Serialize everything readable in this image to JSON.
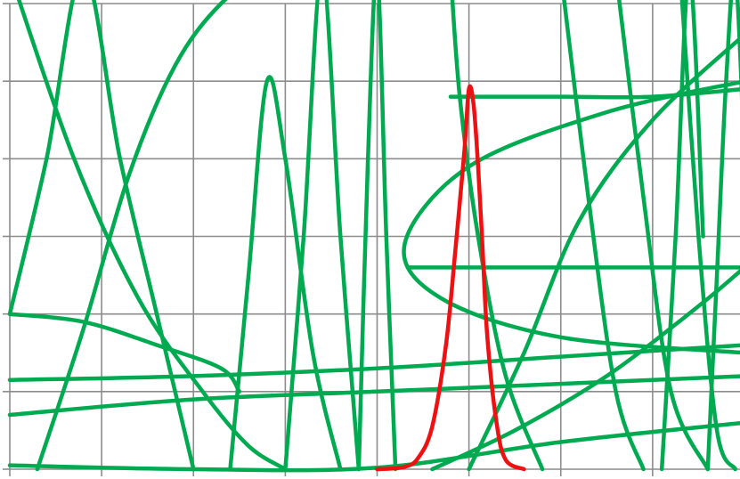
{
  "chart_data": {
    "type": "line",
    "title": "",
    "xlabel": "",
    "ylabel": "",
    "xlim": [
      0,
      8
    ],
    "ylim": [
      0,
      6
    ],
    "grid": true,
    "legend": "none",
    "colors": {
      "highlight": "#ee1111",
      "others": "#00aa50",
      "grid": "#8c8c8c"
    },
    "series": [
      {
        "color": "#ee1111",
        "x": [
          4.0,
          4.3,
          4.45,
          4.6,
          4.75,
          4.85,
          4.95,
          5.0,
          5.05,
          5.1,
          5.15,
          5.2,
          5.3,
          5.4,
          5.6
        ],
        "y": [
          0.0,
          0.03,
          0.15,
          0.55,
          1.6,
          2.8,
          4.1,
          4.9,
          4.7,
          3.9,
          2.8,
          1.7,
          0.6,
          0.12,
          0.0
        ]
      },
      {
        "color": "#00aa50",
        "x": [
          0.0,
          0.4,
          0.8,
          1.2,
          1.6,
          2.0
        ],
        "y": [
          2.0,
          4.0,
          6.4,
          4.0,
          2.0,
          0.0
        ]
      },
      {
        "color": "#00aa50",
        "x": [
          0.0,
          0.7,
          1.4,
          2.1,
          2.6,
          3.0
        ],
        "y": [
          6.4,
          4.0,
          2.2,
          1.0,
          0.3,
          0.0
        ]
      },
      {
        "color": "#00aa50",
        "x": [
          0.3,
          0.8,
          1.3,
          1.8,
          2.3,
          2.8
        ],
        "y": [
          0.0,
          1.8,
          3.8,
          5.2,
          6.0,
          6.4
        ]
      },
      {
        "color": "#00aa50",
        "x": [
          0.0,
          0.8,
          1.6,
          2.3,
          2.5
        ],
        "y": [
          2.0,
          1.9,
          1.6,
          1.3,
          1.0
        ]
      },
      {
        "color": "#00aa50",
        "x": [
          0.0,
          2.0,
          4.0,
          6.0,
          8.0
        ],
        "y": [
          1.15,
          1.2,
          1.3,
          1.45,
          1.6
        ]
      },
      {
        "color": "#00aa50",
        "x": [
          0.0,
          2.0,
          4.0,
          6.0,
          8.0
        ],
        "y": [
          0.7,
          0.9,
          1.0,
          1.1,
          1.2
        ]
      },
      {
        "color": "#00aa50",
        "x": [
          2.4,
          2.6,
          2.8,
          3.0,
          3.3,
          3.6
        ],
        "y": [
          0.0,
          2.5,
          5.0,
          4.0,
          1.5,
          0.0
        ]
      },
      {
        "color": "#00aa50",
        "x": [
          3.0,
          3.2,
          3.4,
          3.6,
          3.8
        ],
        "y": [
          0.0,
          3.0,
          6.4,
          3.0,
          0.0
        ]
      },
      {
        "color": "#00aa50",
        "x": [
          3.8,
          3.9,
          4.0,
          4.1,
          4.2
        ],
        "y": [
          0.0,
          4.0,
          6.4,
          3.0,
          0.0
        ]
      },
      {
        "color": "#00aa50",
        "x": [
          8.0,
          6.5,
          5.0,
          4.3,
          4.7,
          6.0,
          8.0
        ],
        "y": [
          5.0,
          4.6,
          3.9,
          2.9,
          2.2,
          1.7,
          1.5
        ]
      },
      {
        "color": "#00aa50",
        "x": [
          4.35,
          5.5,
          6.5,
          8.0
        ],
        "y": [
          2.6,
          2.6,
          2.6,
          2.6
        ]
      },
      {
        "color": "#00aa50",
        "x": [
          4.8,
          6.0,
          7.0,
          8.0
        ],
        "y": [
          4.8,
          4.8,
          4.8,
          4.9
        ]
      },
      {
        "color": "#00aa50",
        "x": [
          4.8,
          4.9,
          5.1,
          5.4,
          5.8
        ],
        "y": [
          6.4,
          4.8,
          3.0,
          1.2,
          0.0
        ]
      },
      {
        "color": "#00aa50",
        "x": [
          5.0,
          5.6,
          6.2,
          7.0,
          8.0
        ],
        "y": [
          0.0,
          1.5,
          3.2,
          4.5,
          5.6
        ]
      },
      {
        "color": "#00aa50",
        "x": [
          4.6,
          5.5,
          6.5,
          7.5,
          8.0
        ],
        "y": [
          0.0,
          0.5,
          1.2,
          2.1,
          2.6
        ]
      },
      {
        "color": "#00aa50",
        "x": [
          0.0,
          2.0,
          4.0,
          6.0,
          8.0
        ],
        "y": [
          0.05,
          0.0,
          0.02,
          0.35,
          0.6
        ]
      },
      {
        "color": "#00aa50",
        "x": [
          6.0,
          6.3,
          6.6,
          6.9
        ],
        "y": [
          6.4,
          3.5,
          1.0,
          0.0
        ]
      },
      {
        "color": "#00aa50",
        "x": [
          6.6,
          6.9,
          7.2,
          7.6
        ],
        "y": [
          6.4,
          3.5,
          1.0,
          0.0
        ]
      },
      {
        "color": "#00aa50",
        "x": [
          7.1,
          7.25,
          7.4,
          7.55
        ],
        "y": [
          0.0,
          3.0,
          6.4,
          3.0
        ]
      },
      {
        "color": "#00aa50",
        "x": [
          7.3,
          7.5,
          7.7,
          7.9
        ],
        "y": [
          6.4,
          3.0,
          0.5,
          0.0
        ]
      },
      {
        "color": "#00aa50",
        "x": [
          7.6,
          7.7,
          7.8,
          7.9,
          8.0
        ],
        "y": [
          0.0,
          2.5,
          5.0,
          6.4,
          4.0
        ]
      }
    ]
  }
}
